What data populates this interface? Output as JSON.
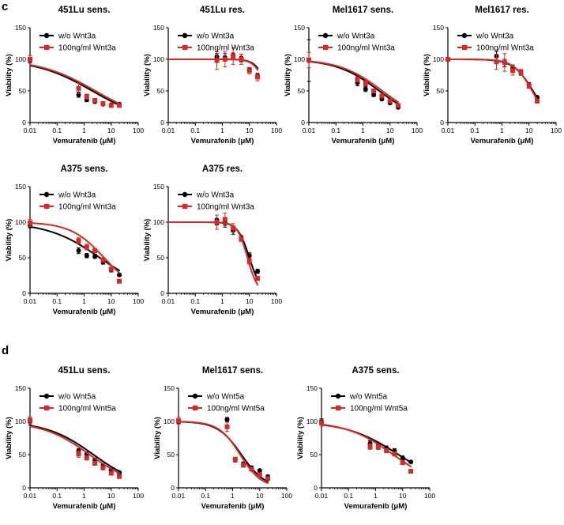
{
  "panel_labels": [
    "c",
    "d"
  ],
  "colors": {
    "wo": "#000000",
    "treated": "#d42a2a"
  },
  "chart_data": [
    {
      "type": "line",
      "panel": "c",
      "title": "451Lu sens.",
      "xlabel": "Vemurafenib (μM)",
      "ylabel": "Viability (%)",
      "xscale": "log",
      "xlim": [
        0.01,
        100
      ],
      "ylim": [
        0,
        150
      ],
      "x_ticks": [
        0.01,
        0.1,
        1,
        10,
        100
      ],
      "x_tick_labels": [
        "0.01",
        "0.1",
        "1",
        "10",
        "100"
      ],
      "y_ticks": [
        0,
        50,
        100,
        150
      ],
      "y_tick_labels": [
        "0",
        "50",
        "100",
        "150"
      ],
      "legend_location": "top-left",
      "series": [
        {
          "name": "w/o Wnt3a",
          "color": "#000000",
          "marker": "circle",
          "x": [
            0.01,
            0.625,
            1.25,
            2.5,
            5,
            10,
            20
          ],
          "y": [
            99,
            44,
            36,
            33,
            29,
            28,
            29
          ],
          "err": [
            4,
            4,
            3,
            2,
            2,
            2,
            2
          ],
          "fit": {
            "top": 100,
            "bottom": 0,
            "ic50": 2.0,
            "hill": 0.42
          }
        },
        {
          "name": "100ng/ml Wnt3a",
          "color": "#d42a2a",
          "marker": "square",
          "x": [
            0.01,
            0.625,
            1.25,
            2.5,
            5,
            10,
            20
          ],
          "y": [
            100,
            54,
            41,
            35,
            30,
            27,
            27
          ],
          "err": [
            6,
            8,
            4,
            3,
            2,
            2,
            2
          ],
          "fit": {
            "top": 100,
            "bottom": 0,
            "ic50": 2.6,
            "hill": 0.42
          }
        }
      ]
    },
    {
      "type": "line",
      "panel": "c",
      "title": "451Lu res.",
      "xlabel": "Vemurafenib (μM)",
      "ylabel": "Viability (%)",
      "xscale": "log",
      "xlim": [
        0.01,
        100
      ],
      "ylim": [
        0,
        150
      ],
      "x_ticks": [
        0.01,
        0.1,
        1,
        10,
        100
      ],
      "x_tick_labels": [
        "0.01",
        "0.1",
        "1",
        "10",
        "100"
      ],
      "y_ticks": [
        0,
        50,
        100,
        150
      ],
      "y_tick_labels": [
        "0",
        "50",
        "100",
        "150"
      ],
      "legend_location": "top-left",
      "series": [
        {
          "name": "w/o Wnt3a",
          "color": "#000000",
          "marker": "circle",
          "x": [
            0.625,
            1.25,
            2.5,
            5,
            10,
            20
          ],
          "y": [
            104,
            103,
            106,
            102,
            84,
            74
          ],
          "err": [
            5,
            6,
            4,
            6,
            3,
            4
          ],
          "fit": {
            "top": 100,
            "bottom": 0,
            "ic50": 50,
            "hill": 2.0
          }
        },
        {
          "name": "100ng/ml Wnt3a",
          "color": "#d42a2a",
          "marker": "square",
          "x": [
            0.625,
            1.25,
            2.5,
            5,
            10,
            20
          ],
          "y": [
            98,
            100,
            105,
            100,
            82,
            72
          ],
          "err": [
            14,
            12,
            13,
            8,
            5,
            6
          ],
          "fit": {
            "top": 100,
            "bottom": 0,
            "ic50": 45,
            "hill": 2.0
          }
        }
      ]
    },
    {
      "type": "line",
      "panel": "c",
      "title": "Mel1617 sens.",
      "xlabel": "Vemurafenib (μM)",
      "ylabel": "Viability (%)",
      "xscale": "log",
      "xlim": [
        0.01,
        100
      ],
      "ylim": [
        0,
        150
      ],
      "x_ticks": [
        0.01,
        0.1,
        1,
        10,
        100
      ],
      "x_tick_labels": [
        "0.01",
        "0.1",
        "1",
        "10",
        "100"
      ],
      "y_ticks": [
        0,
        50,
        100,
        150
      ],
      "y_tick_labels": [
        "0",
        "50",
        "100",
        "150"
      ],
      "legend_location": "top-left",
      "series": [
        {
          "name": "w/o Wnt3a",
          "color": "#000000",
          "marker": "circle",
          "x": [
            0.01,
            0.625,
            1.25,
            2.5,
            5,
            10,
            20
          ],
          "y": [
            98,
            63,
            53,
            44,
            37,
            31,
            24
          ],
          "err": [
            33,
            5,
            4,
            3,
            2,
            2,
            2
          ],
          "fit": {
            "top": 100,
            "bottom": 0,
            "ic50": 4.0,
            "hill": 0.55
          }
        },
        {
          "name": "100ng/ml Wnt3a",
          "color": "#d42a2a",
          "marker": "square",
          "x": [
            0.01,
            0.625,
            1.25,
            2.5,
            5,
            10,
            20
          ],
          "y": [
            99,
            68,
            62,
            50,
            42,
            34,
            27
          ],
          "err": [
            12,
            4,
            4,
            3,
            3,
            2,
            2
          ],
          "fit": {
            "top": 100,
            "bottom": 0,
            "ic50": 5.2,
            "hill": 0.55
          }
        }
      ]
    },
    {
      "type": "line",
      "panel": "c",
      "title": "Mel1617 res.",
      "xlabel": "Vemurafenib (μM)",
      "ylabel": "Viability (%)",
      "xscale": "log",
      "xlim": [
        0.01,
        100
      ],
      "ylim": [
        0,
        150
      ],
      "x_ticks": [
        0.01,
        0.1,
        1,
        10,
        100
      ],
      "x_tick_labels": [
        "0.01",
        "0.1",
        "1",
        "10",
        "100"
      ],
      "y_ticks": [
        0,
        50,
        100,
        150
      ],
      "y_tick_labels": [
        "0",
        "50",
        "100",
        "150"
      ],
      "legend_location": "top-left",
      "series": [
        {
          "name": "w/o Wnt3a",
          "color": "#000000",
          "marker": "circle",
          "x": [
            0.01,
            0.625,
            1.25,
            2.5,
            5,
            10,
            20
          ],
          "y": [
            100,
            105,
            94,
            86,
            78,
            60,
            40
          ],
          "err": [
            3,
            8,
            6,
            5,
            3,
            3,
            2
          ],
          "fit": {
            "top": 100,
            "bottom": 0,
            "ic50": 14,
            "hill": 1.2
          }
        },
        {
          "name": "100ng/ml Wnt3a",
          "color": "#d42a2a",
          "marker": "square",
          "x": [
            0.01,
            0.625,
            1.25,
            2.5,
            5,
            10,
            20
          ],
          "y": [
            100,
            96,
            95,
            82,
            80,
            58,
            34
          ],
          "err": [
            3,
            12,
            14,
            7,
            4,
            4,
            3
          ],
          "fit": {
            "top": 100,
            "bottom": 0,
            "ic50": 13,
            "hill": 1.3
          }
        }
      ]
    },
    {
      "type": "line",
      "panel": "c",
      "title": "A375 sens.",
      "xlabel": "Vemurafenib (μM)",
      "ylabel": "Viability (%)",
      "xscale": "log",
      "xlim": [
        0.01,
        100
      ],
      "ylim": [
        0,
        150
      ],
      "x_ticks": [
        0.01,
        0.1,
        1,
        10,
        100
      ],
      "x_tick_labels": [
        "0.01",
        "0.1",
        "1",
        "10",
        "100"
      ],
      "y_ticks": [
        0,
        50,
        100,
        150
      ],
      "y_tick_labels": [
        "0",
        "50",
        "100",
        "150"
      ],
      "legend_location": "top-left",
      "series": [
        {
          "name": "w/o Wnt3a",
          "color": "#000000",
          "marker": "circle",
          "x": [
            0.01,
            0.625,
            1.25,
            2.5,
            5,
            10,
            20
          ],
          "y": [
            95,
            60,
            53,
            52,
            44,
            33,
            26
          ],
          "err": [
            3,
            4,
            3,
            3,
            3,
            3,
            2
          ],
          "fit": {
            "top": 100,
            "bottom": 0,
            "ic50": 3.8,
            "hill": 0.45
          }
        },
        {
          "name": "100ng/ml Wnt3a",
          "color": "#d42a2a",
          "marker": "square",
          "x": [
            0.01,
            0.625,
            1.25,
            2.5,
            5,
            10,
            20
          ],
          "y": [
            99,
            74,
            65,
            60,
            47,
            34,
            17
          ],
          "err": [
            5,
            4,
            4,
            3,
            3,
            3,
            2
          ],
          "fit": {
            "top": 100,
            "bottom": 0,
            "ic50": 5.5,
            "hill": 0.7
          }
        }
      ]
    },
    {
      "type": "line",
      "panel": "c",
      "title": "A375 res.",
      "xlabel": "Vemurafenib (μM)",
      "ylabel": "Viability (%)",
      "xscale": "log",
      "xlim": [
        0.01,
        100
      ],
      "ylim": [
        0,
        150
      ],
      "x_ticks": [
        0.01,
        0.1,
        1,
        10,
        100
      ],
      "x_tick_labels": [
        "0.01",
        "0.1",
        "1",
        "10",
        "100"
      ],
      "y_ticks": [
        0,
        50,
        100,
        150
      ],
      "y_tick_labels": [
        "0",
        "50",
        "100",
        "150"
      ],
      "legend_location": "top-left",
      "series": [
        {
          "name": "w/o Wnt3a",
          "color": "#000000",
          "marker": "circle",
          "x": [
            0.625,
            1.25,
            2.5,
            5,
            10,
            20
          ],
          "y": [
            103,
            99,
            88,
            78,
            53,
            31
          ],
          "err": [
            7,
            6,
            5,
            3,
            4,
            3
          ],
          "fit": {
            "top": 100,
            "bottom": 0,
            "ic50": 10,
            "hill": 2.0
          }
        },
        {
          "name": "100ng/ml Wnt3a",
          "color": "#d42a2a",
          "marker": "square",
          "x": [
            0.625,
            1.25,
            2.5,
            5,
            10,
            20
          ],
          "y": [
            100,
            104,
            92,
            76,
            45,
            21
          ],
          "err": [
            10,
            9,
            6,
            3,
            4,
            3
          ],
          "fit": {
            "top": 100,
            "bottom": 0,
            "ic50": 8.5,
            "hill": 2.3
          }
        }
      ]
    },
    {
      "type": "line",
      "panel": "d",
      "title": "451Lu sens.",
      "xlabel": "Vemurafenib (μM)",
      "ylabel": "Viability (%)",
      "xscale": "log",
      "xlim": [
        0.01,
        100
      ],
      "ylim": [
        0,
        150
      ],
      "x_ticks": [
        0.01,
        0.1,
        1,
        10,
        100
      ],
      "x_tick_labels": [
        "0.01",
        "0.1",
        "1",
        "10",
        "100"
      ],
      "y_ticks": [
        0,
        50,
        100,
        150
      ],
      "y_tick_labels": [
        "0",
        "50",
        "100",
        "150"
      ],
      "legend_location": "top-left",
      "series": [
        {
          "name": "w/o Wnt5a",
          "color": "#000000",
          "marker": "circle",
          "x": [
            0.01,
            0.625,
            1.25,
            2.5,
            5,
            10,
            20
          ],
          "y": [
            100,
            56,
            51,
            42,
            34,
            27,
            23
          ],
          "err": [
            5,
            3,
            3,
            3,
            2,
            2,
            2
          ],
          "fit": {
            "top": 100,
            "bottom": 0,
            "ic50": 2.2,
            "hill": 0.5
          }
        },
        {
          "name": "100ng/ml Wnt5a",
          "color": "#d42a2a",
          "marker": "square",
          "x": [
            0.01,
            0.625,
            1.25,
            2.5,
            5,
            10,
            20
          ],
          "y": [
            102,
            51,
            45,
            37,
            30,
            22,
            17
          ],
          "err": [
            5,
            5,
            3,
            3,
            2,
            2,
            2
          ],
          "fit": {
            "top": 100,
            "bottom": 0,
            "ic50": 1.6,
            "hill": 0.5
          }
        }
      ]
    },
    {
      "type": "line",
      "panel": "d",
      "title": "Mel1617 sens.",
      "xlabel": "Vemurafenib (μM)",
      "ylabel": "Viability (%)",
      "xscale": "log",
      "xlim": [
        0.01,
        100
      ],
      "ylim": [
        0,
        150
      ],
      "x_ticks": [
        0.01,
        0.1,
        1,
        10,
        100
      ],
      "x_tick_labels": [
        "0.01",
        "0.1",
        "1",
        "10",
        "100"
      ],
      "y_ticks": [
        0,
        50,
        100,
        150
      ],
      "y_tick_labels": [
        "0",
        "50",
        "100",
        "150"
      ],
      "legend_location": "top-left",
      "series": [
        {
          "name": "w/o Wnt5a",
          "color": "#000000",
          "marker": "circle",
          "x": [
            0.01,
            0.625,
            1.25,
            2.5,
            5,
            10,
            20
          ],
          "y": [
            100,
            103,
            42,
            36,
            30,
            26,
            17
          ],
          "err": [
            3,
            3,
            3,
            3,
            3,
            2,
            2
          ],
          "fit": {
            "top": 100,
            "bottom": 0,
            "ic50": 2.1,
            "hill": 1.0
          }
        },
        {
          "name": "100ng/ml Wnt5a",
          "color": "#d42a2a",
          "marker": "square",
          "x": [
            0.01,
            0.625,
            1.25,
            2.5,
            5,
            10,
            20
          ],
          "y": [
            101,
            92,
            43,
            34,
            28,
            20,
            14
          ],
          "err": [
            5,
            7,
            3,
            3,
            3,
            2,
            2
          ],
          "fit": {
            "top": 100,
            "bottom": 0,
            "ic50": 1.9,
            "hill": 1.1
          }
        }
      ]
    },
    {
      "type": "line",
      "panel": "d",
      "title": "A375 sens.",
      "xlabel": "Vemurafenib (μM)",
      "ylabel": "Viability (%)",
      "xscale": "log",
      "xlim": [
        0.01,
        100
      ],
      "ylim": [
        0,
        150
      ],
      "x_ticks": [
        0.01,
        0.1,
        1,
        10,
        100
      ],
      "x_tick_labels": [
        "0.01",
        "0.1",
        "1",
        "10",
        "100"
      ],
      "y_ticks": [
        0,
        50,
        100,
        150
      ],
      "y_tick_labels": [
        "0",
        "50",
        "100",
        "150"
      ],
      "legend_location": "top-left",
      "series": [
        {
          "name": "w/o Wnt5a",
          "color": "#000000",
          "marker": "circle",
          "x": [
            0.01,
            0.625,
            1.25,
            2.5,
            5,
            10,
            20
          ],
          "y": [
            100,
            67,
            64,
            60,
            56,
            45,
            39
          ],
          "err": [
            4,
            4,
            3,
            3,
            3,
            3,
            2
          ],
          "fit": {
            "top": 100,
            "bottom": 0,
            "ic50": 7.0,
            "hill": 0.45
          }
        },
        {
          "name": "100ng/ml Wnt5a",
          "color": "#d42a2a",
          "marker": "square",
          "x": [
            0.01,
            0.625,
            1.25,
            2.5,
            5,
            10,
            20
          ],
          "y": [
            98,
            62,
            61,
            56,
            51,
            38,
            25
          ],
          "err": [
            5,
            4,
            3,
            3,
            3,
            3,
            2
          ],
          "fit": {
            "top": 100,
            "bottom": 0,
            "ic50": 4.5,
            "hill": 0.5
          }
        }
      ]
    }
  ]
}
